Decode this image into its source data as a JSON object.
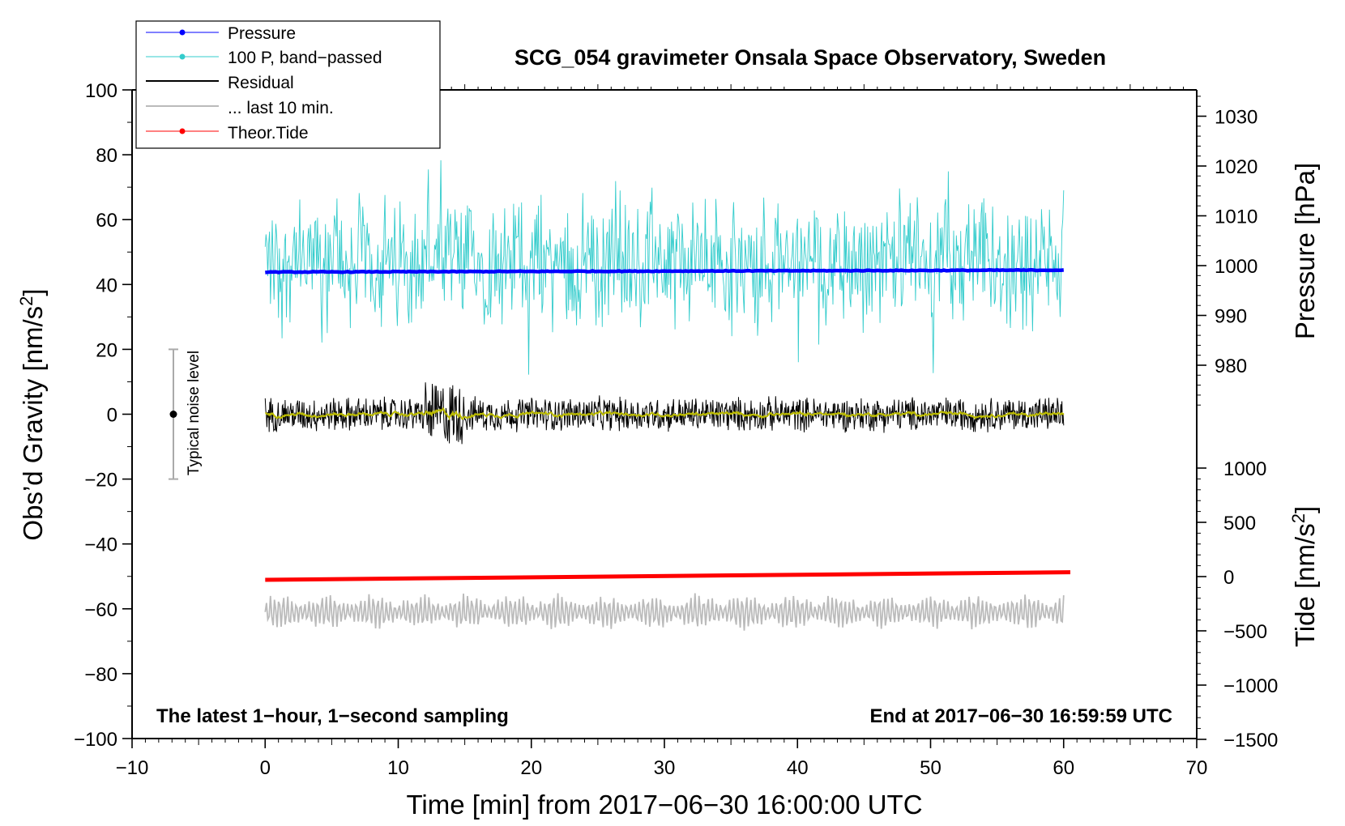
{
  "chart_data": {
    "type": "line",
    "title": "SCG_054 gravimeter Onsala Space Observatory, Sweden",
    "xlabel": "Time [min] from 2017−06−30 16:00:00 UTC",
    "ylabel_left": "Obs’d Gravity [nm/s",
    "ylabel_left_sup": "2",
    "ylabel_left_tail": "]",
    "ylabel_right_pressure": "Pressure [hPa]",
    "ylabel_right_tide": "Tide [nm/s",
    "ylabel_right_tide_sup": "2",
    "ylabel_right_tide_tail": "]",
    "xlim": [
      -10,
      70
    ],
    "ylim_left": [
      -100,
      100
    ],
    "pressure_range": [
      970,
      1035
    ],
    "tide_range": [
      -1500,
      1000
    ],
    "x_ticks": [
      "−10",
      "0",
      "10",
      "20",
      "30",
      "40",
      "50",
      "60",
      "70"
    ],
    "y_left_ticks": [
      "−100",
      "−80",
      "−60",
      "−40",
      "−20",
      "0",
      "20",
      "40",
      "60",
      "80",
      "100"
    ],
    "pressure_ticks": [
      "980",
      "990",
      "1000",
      "1010",
      "1020",
      "1030"
    ],
    "tide_ticks": [
      "−1500",
      "−1000",
      "−500",
      "0",
      "500",
      "1000"
    ],
    "annotation_left": "The latest 1−hour, 1−second sampling",
    "annotation_right": "End at 2017−06−30 16:59:59 UTC",
    "noise_label": "Typical noise level",
    "noise_range": [
      -20,
      20
    ],
    "legend_placement": "top-left",
    "grid": false,
    "series": [
      {
        "name": "Pressure",
        "color": "#0000ff",
        "axis": "pressure",
        "x": [
          0,
          15,
          30,
          45,
          60
        ],
        "values": [
          998.7,
          998.8,
          998.9,
          999.0,
          999.1
        ]
      },
      {
        "name": "100 P, band−passed",
        "color": "#33cccc",
        "axis": "left",
        "center": 47,
        "amplitude": 28,
        "x_range": [
          0,
          60
        ]
      },
      {
        "name": "Residual",
        "color": "#000000",
        "axis": "left",
        "center": 0,
        "amplitude": 6,
        "x_range": [
          0,
          60
        ]
      },
      {
        "name": "... last 10 min.",
        "color": "#bbbbbb",
        "axis": "left",
        "center": -61,
        "amplitude": 6,
        "x_range": [
          0,
          60
        ]
      },
      {
        "name": "Theor.Tide",
        "color": "#ff0000",
        "axis": "tide",
        "x": [
          0,
          60.5
        ],
        "values": [
          -30,
          40
        ]
      }
    ],
    "smoothed_residual_color": "#bbbb00"
  }
}
